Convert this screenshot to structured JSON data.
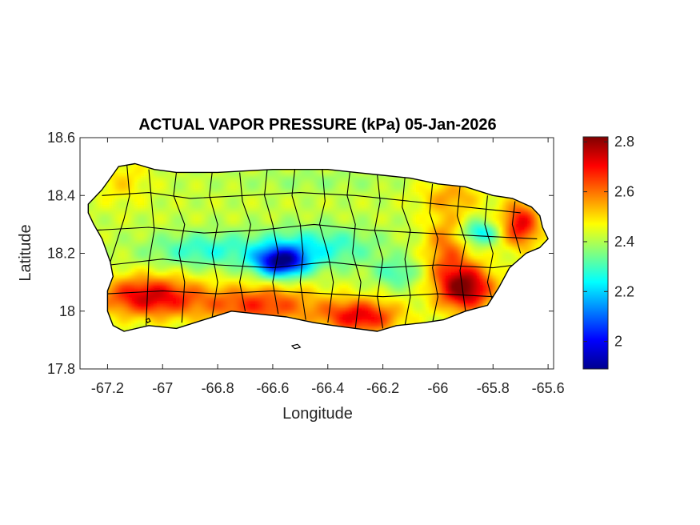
{
  "chart_data": {
    "type": "heatmap",
    "title": "ACTUAL VAPOR PRESSURE (kPa) 05-Jan-2026",
    "xlabel": "Longitude",
    "ylabel": "Latitude",
    "xlim": [
      -67.3,
      -65.58
    ],
    "ylim": [
      17.8,
      18.6
    ],
    "xticks": [
      -67.2,
      -67,
      -66.8,
      -66.6,
      -66.4,
      -66.2,
      -66,
      -65.8,
      -65.6
    ],
    "yticks": [
      17.8,
      18,
      18.2,
      18.4,
      18.6
    ],
    "xtick_labels": [
      "-67.2",
      "-67",
      "-66.8",
      "-66.6",
      "-66.4",
      "-66.2",
      "-66",
      "-65.8",
      "-65.6"
    ],
    "ytick_labels": [
      "17.8",
      "18",
      "18.2",
      "18.4",
      "18.6"
    ],
    "colorbar": {
      "colormap": "jet",
      "clim": [
        1.89,
        2.82
      ],
      "ticks": [
        2,
        2.2,
        2.4,
        2.6,
        2.8
      ],
      "tick_labels": [
        "2",
        "2.2",
        "2.4",
        "2.6",
        "2.8"
      ]
    },
    "region": "Puerto Rico",
    "border_color": "#000000",
    "value_field": {
      "base": 2.42,
      "features": [
        {
          "lon": -66.57,
          "lat": 18.17,
          "amp": -0.48,
          "slon": 0.09,
          "slat": 0.05
        },
        {
          "lon": -66.45,
          "lat": 18.22,
          "amp": -0.16,
          "slon": 0.22,
          "slat": 0.07
        },
        {
          "lon": -66.85,
          "lat": 18.21,
          "amp": -0.14,
          "slon": 0.2,
          "slat": 0.06
        },
        {
          "lon": -66.15,
          "lat": 18.13,
          "amp": -0.12,
          "slon": 0.08,
          "slat": 0.05
        },
        {
          "lon": -65.85,
          "lat": 18.27,
          "amp": -0.2,
          "slon": 0.07,
          "slat": 0.04
        },
        {
          "lon": -67.05,
          "lat": 18.05,
          "amp": 0.32,
          "slon": 0.18,
          "slat": 0.07
        },
        {
          "lon": -66.65,
          "lat": 18.02,
          "amp": 0.24,
          "slon": 0.22,
          "slat": 0.07
        },
        {
          "lon": -66.28,
          "lat": 17.98,
          "amp": 0.3,
          "slon": 0.14,
          "slat": 0.06
        },
        {
          "lon": -65.9,
          "lat": 18.08,
          "amp": 0.4,
          "slon": 0.1,
          "slat": 0.08
        },
        {
          "lon": -65.97,
          "lat": 18.22,
          "amp": 0.18,
          "slon": 0.08,
          "slat": 0.12
        },
        {
          "lon": -65.7,
          "lat": 18.3,
          "amp": 0.3,
          "slon": 0.07,
          "slat": 0.08
        },
        {
          "lon": -65.95,
          "lat": 18.4,
          "amp": 0.12,
          "slon": 0.12,
          "slat": 0.06
        },
        {
          "lon": -67.15,
          "lat": 18.45,
          "amp": 0.08,
          "slon": 0.1,
          "slat": 0.08
        },
        {
          "lon": -66.45,
          "lat": 18.45,
          "amp": -0.04,
          "slon": 0.3,
          "slat": 0.04
        }
      ]
    },
    "outline": [
      [
        -67.27,
        18.37
      ],
      [
        -67.22,
        18.42
      ],
      [
        -67.19,
        18.46
      ],
      [
        -67.16,
        18.5
      ],
      [
        -67.1,
        18.51
      ],
      [
        -67.03,
        18.49
      ],
      [
        -66.95,
        18.48
      ],
      [
        -66.8,
        18.48
      ],
      [
        -66.6,
        18.49
      ],
      [
        -66.4,
        18.49
      ],
      [
        -66.3,
        18.48
      ],
      [
        -66.2,
        18.47
      ],
      [
        -66.1,
        18.46
      ],
      [
        -66.0,
        18.44
      ],
      [
        -65.9,
        18.43
      ],
      [
        -65.8,
        18.4
      ],
      [
        -65.73,
        18.39
      ],
      [
        -65.66,
        18.36
      ],
      [
        -65.63,
        18.33
      ],
      [
        -65.62,
        18.29
      ],
      [
        -65.6,
        18.25
      ],
      [
        -65.63,
        18.22
      ],
      [
        -65.68,
        18.2
      ],
      [
        -65.74,
        18.15
      ],
      [
        -65.78,
        18.08
      ],
      [
        -65.82,
        18.02
      ],
      [
        -65.9,
        18.0
      ],
      [
        -65.98,
        17.97
      ],
      [
        -66.05,
        17.96
      ],
      [
        -66.15,
        17.95
      ],
      [
        -66.22,
        17.93
      ],
      [
        -66.3,
        17.94
      ],
      [
        -66.38,
        17.95
      ],
      [
        -66.45,
        17.96
      ],
      [
        -66.55,
        17.98
      ],
      [
        -66.65,
        17.99
      ],
      [
        -66.75,
        18.0
      ],
      [
        -66.85,
        17.97
      ],
      [
        -66.95,
        17.94
      ],
      [
        -67.05,
        17.95
      ],
      [
        -67.14,
        17.93
      ],
      [
        -67.18,
        17.95
      ],
      [
        -67.2,
        18.0
      ],
      [
        -67.2,
        18.07
      ],
      [
        -67.18,
        18.12
      ],
      [
        -67.19,
        18.17
      ],
      [
        -67.22,
        18.25
      ],
      [
        -67.25,
        18.3
      ],
      [
        -67.27,
        18.34
      ]
    ],
    "islets": [
      [
        [
          -66.53,
          17.88
        ],
        [
          -66.51,
          17.885
        ],
        [
          -66.5,
          17.875
        ],
        [
          -66.52,
          17.87
        ]
      ],
      [
        [
          -67.06,
          17.97
        ],
        [
          -67.05,
          17.975
        ],
        [
          -67.045,
          17.965
        ],
        [
          -67.055,
          17.96
        ]
      ]
    ],
    "municipal_boundaries": [
      [
        [
          -67.13,
          18.51
        ],
        [
          -67.12,
          18.4
        ],
        [
          -67.14,
          18.32
        ],
        [
          -67.19,
          18.17
        ]
      ],
      [
        [
          -67.05,
          18.49
        ],
        [
          -67.04,
          18.38
        ],
        [
          -67.03,
          18.28
        ],
        [
          -67.05,
          18.17
        ],
        [
          -67.06,
          17.95
        ]
      ],
      [
        [
          -66.95,
          18.48
        ],
        [
          -66.96,
          18.4
        ],
        [
          -66.92,
          18.3
        ],
        [
          -66.94,
          18.2
        ],
        [
          -66.92,
          18.1
        ],
        [
          -66.93,
          17.96
        ]
      ],
      [
        [
          -66.82,
          18.48
        ],
        [
          -66.83,
          18.4
        ],
        [
          -66.8,
          18.3
        ],
        [
          -66.82,
          18.2
        ],
        [
          -66.8,
          18.1
        ],
        [
          -66.82,
          17.98
        ]
      ],
      [
        [
          -66.72,
          18.48
        ],
        [
          -66.71,
          18.38
        ],
        [
          -66.68,
          18.3
        ],
        [
          -66.7,
          18.2
        ],
        [
          -66.72,
          18.1
        ],
        [
          -66.7,
          18.0
        ]
      ],
      [
        [
          -66.62,
          18.49
        ],
        [
          -66.63,
          18.4
        ],
        [
          -66.6,
          18.3
        ],
        [
          -66.58,
          18.2
        ],
        [
          -66.6,
          18.1
        ],
        [
          -66.58,
          17.99
        ]
      ],
      [
        [
          -66.52,
          18.49
        ],
        [
          -66.53,
          18.4
        ],
        [
          -66.5,
          18.3
        ],
        [
          -66.49,
          18.2
        ],
        [
          -66.5,
          18.1
        ],
        [
          -66.48,
          17.97
        ]
      ],
      [
        [
          -66.42,
          18.49
        ],
        [
          -66.41,
          18.38
        ],
        [
          -66.43,
          18.3
        ],
        [
          -66.4,
          18.2
        ],
        [
          -66.38,
          18.1
        ],
        [
          -66.4,
          17.96
        ]
      ],
      [
        [
          -66.32,
          18.48
        ],
        [
          -66.33,
          18.4
        ],
        [
          -66.3,
          18.3
        ],
        [
          -66.31,
          18.2
        ],
        [
          -66.28,
          18.1
        ],
        [
          -66.3,
          17.94
        ]
      ],
      [
        [
          -66.22,
          18.47
        ],
        [
          -66.21,
          18.38
        ],
        [
          -66.23,
          18.28
        ],
        [
          -66.2,
          18.18
        ],
        [
          -66.22,
          18.05
        ],
        [
          -66.2,
          17.94
        ]
      ],
      [
        [
          -66.12,
          18.46
        ],
        [
          -66.13,
          18.36
        ],
        [
          -66.1,
          18.28
        ],
        [
          -66.12,
          18.18
        ],
        [
          -66.1,
          18.05
        ],
        [
          -66.12,
          17.95
        ]
      ],
      [
        [
          -66.02,
          18.44
        ],
        [
          -66.03,
          18.34
        ],
        [
          -66.0,
          18.25
        ],
        [
          -66.02,
          18.15
        ],
        [
          -66.0,
          18.05
        ],
        [
          -66.02,
          17.96
        ]
      ],
      [
        [
          -65.92,
          18.43
        ],
        [
          -65.93,
          18.33
        ],
        [
          -65.9,
          18.24
        ],
        [
          -65.92,
          18.14
        ],
        [
          -65.9,
          18.0
        ]
      ],
      [
        [
          -65.82,
          18.4
        ],
        [
          -65.83,
          18.3
        ],
        [
          -65.8,
          18.2
        ],
        [
          -65.82,
          18.1
        ],
        [
          -65.8,
          18.03
        ]
      ],
      [
        [
          -65.72,
          18.38
        ],
        [
          -65.73,
          18.3
        ],
        [
          -65.7,
          18.2
        ]
      ],
      [
        [
          -67.22,
          18.4
        ],
        [
          -67.05,
          18.41
        ],
        [
          -66.9,
          18.39
        ],
        [
          -66.7,
          18.4
        ],
        [
          -66.5,
          18.41
        ],
        [
          -66.3,
          18.4
        ],
        [
          -66.1,
          18.38
        ],
        [
          -65.9,
          18.36
        ],
        [
          -65.7,
          18.34
        ]
      ],
      [
        [
          -67.24,
          18.28
        ],
        [
          -67.05,
          18.29
        ],
        [
          -66.85,
          18.27
        ],
        [
          -66.65,
          18.28
        ],
        [
          -66.45,
          18.3
        ],
        [
          -66.25,
          18.28
        ],
        [
          -66.05,
          18.27
        ],
        [
          -65.85,
          18.26
        ],
        [
          -65.64,
          18.25
        ]
      ],
      [
        [
          -67.19,
          18.16
        ],
        [
          -67.0,
          18.18
        ],
        [
          -66.8,
          18.16
        ],
        [
          -66.6,
          18.15
        ],
        [
          -66.4,
          18.17
        ],
        [
          -66.2,
          18.15
        ],
        [
          -66.0,
          18.16
        ],
        [
          -65.8,
          18.15
        ],
        [
          -65.72,
          18.16
        ]
      ],
      [
        [
          -67.2,
          18.06
        ],
        [
          -67.0,
          18.07
        ],
        [
          -66.8,
          18.06
        ],
        [
          -66.6,
          18.07
        ],
        [
          -66.4,
          18.06
        ],
        [
          -66.2,
          18.05
        ],
        [
          -66.0,
          18.06
        ],
        [
          -65.8,
          18.05
        ]
      ]
    ]
  }
}
